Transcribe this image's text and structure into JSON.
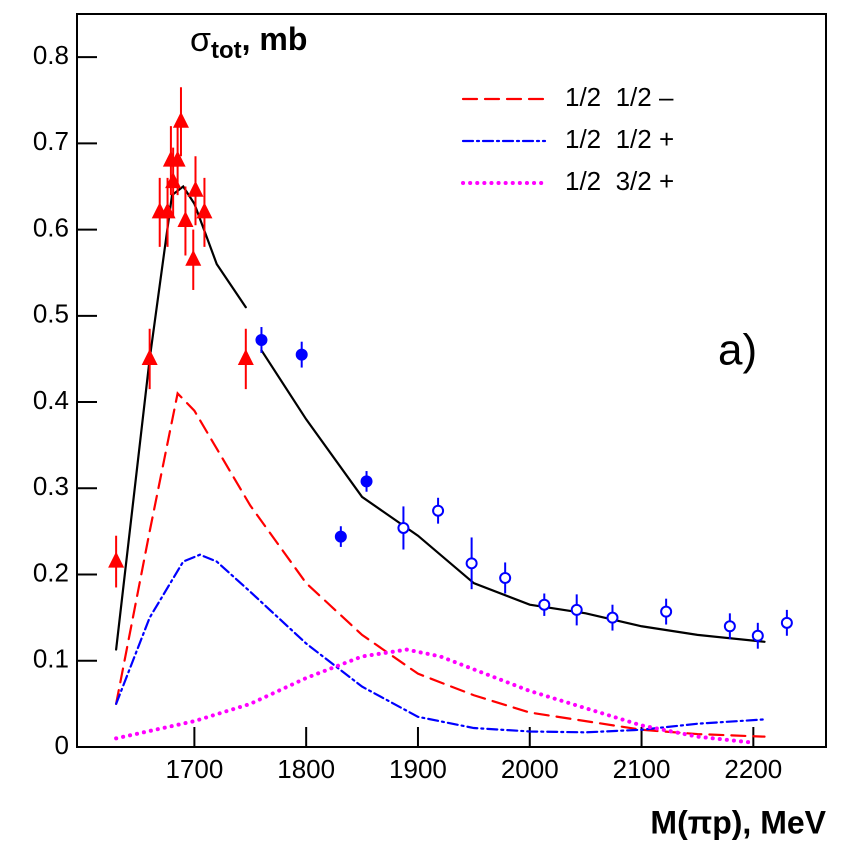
{
  "chart_data": {
    "type": "line",
    "title_symbol": "σ",
    "title_subscript": "tot",
    "title_unit": ", mb",
    "x_label": "M(πp), MeV",
    "annotation": "a)",
    "xlim": [
      1595,
      2265
    ],
    "ylim": [
      0,
      0.85
    ],
    "xticks": [
      1700,
      1800,
      1900,
      2000,
      2100,
      2200
    ],
    "yticks": [
      0,
      0.1,
      0.2,
      0.3,
      0.4,
      0.5,
      0.6,
      0.7,
      0.8
    ],
    "series": [
      {
        "name": "1/2  1/2 –",
        "color": "#ff0000",
        "dash": "dashed",
        "x": [
          1630,
          1660,
          1685,
          1700,
          1750,
          1800,
          1850,
          1900,
          1950,
          2000,
          2050,
          2100,
          2150,
          2210
        ],
        "values": [
          0.05,
          0.25,
          0.41,
          0.39,
          0.28,
          0.19,
          0.13,
          0.085,
          0.06,
          0.04,
          0.03,
          0.02,
          0.015,
          0.012
        ]
      },
      {
        "name": "1/2  1/2 +",
        "color": "#0000ff",
        "dash": "dashdot",
        "x": [
          1630,
          1660,
          1690,
          1705,
          1720,
          1750,
          1800,
          1850,
          1900,
          1950,
          2000,
          2050,
          2100,
          2150,
          2210
        ],
        "values": [
          0.05,
          0.15,
          0.215,
          0.223,
          0.215,
          0.18,
          0.12,
          0.07,
          0.035,
          0.022,
          0.018,
          0.017,
          0.02,
          0.027,
          0.032
        ]
      },
      {
        "name": "1/2  3/2 +",
        "color": "#ff00ff",
        "dash": "dotted",
        "x": [
          1630,
          1700,
          1750,
          1800,
          1850,
          1890,
          1920,
          1950,
          2000,
          2050,
          2100,
          2150,
          2200
        ],
        "values": [
          0.01,
          0.03,
          0.05,
          0.08,
          0.105,
          0.113,
          0.105,
          0.09,
          0.065,
          0.045,
          0.025,
          0.012,
          0.005
        ]
      }
    ],
    "total_curve": {
      "color": "#000000",
      "x": [
        1630,
        1660,
        1680,
        1690,
        1700,
        1720,
        1746,
        null,
        1760,
        1800,
        1850,
        1900,
        1950,
        2000,
        2050,
        2100,
        2150,
        2210
      ],
      "values": [
        0.113,
        0.45,
        0.64,
        0.65,
        0.63,
        0.56,
        0.51,
        null,
        0.46,
        0.38,
        0.29,
        0.245,
        0.19,
        0.165,
        0.155,
        0.14,
        0.13,
        0.122
      ]
    },
    "points": [
      {
        "marker": "triangle",
        "color": "#ff0000",
        "x": [
          1630,
          1660,
          1669,
          1676,
          1679,
          1681,
          1685,
          1688,
          1692,
          1699,
          1701,
          1709,
          1746
        ],
        "values": [
          0.215,
          0.45,
          0.62,
          0.62,
          0.68,
          0.655,
          0.68,
          0.725,
          0.61,
          0.565,
          0.645,
          0.62,
          0.45
        ],
        "errors": [
          0.03,
          0.035,
          0.04,
          0.04,
          0.04,
          0.04,
          0.04,
          0.04,
          0.04,
          0.035,
          0.04,
          0.04,
          0.035
        ]
      },
      {
        "marker": "filled-circle",
        "color": "#0000ff",
        "x": [
          1760,
          1796,
          1831,
          1854
        ],
        "values": [
          0.472,
          0.455,
          0.244,
          0.308
        ],
        "errors": [
          0.015,
          0.015,
          0.012,
          0.012
        ]
      },
      {
        "marker": "open-circle",
        "color": "#0000ff",
        "x": [
          1887,
          1918,
          1948,
          1978,
          2013,
          2042,
          2074,
          2122,
          2179,
          2204,
          2230
        ],
        "values": [
          0.254,
          0.274,
          0.213,
          0.196,
          0.165,
          0.159,
          0.15,
          0.157,
          0.14,
          0.129,
          0.144
        ],
        "errors": [
          0.025,
          0.015,
          0.03,
          0.018,
          0.013,
          0.018,
          0.015,
          0.015,
          0.015,
          0.015,
          0.015
        ]
      }
    ]
  }
}
